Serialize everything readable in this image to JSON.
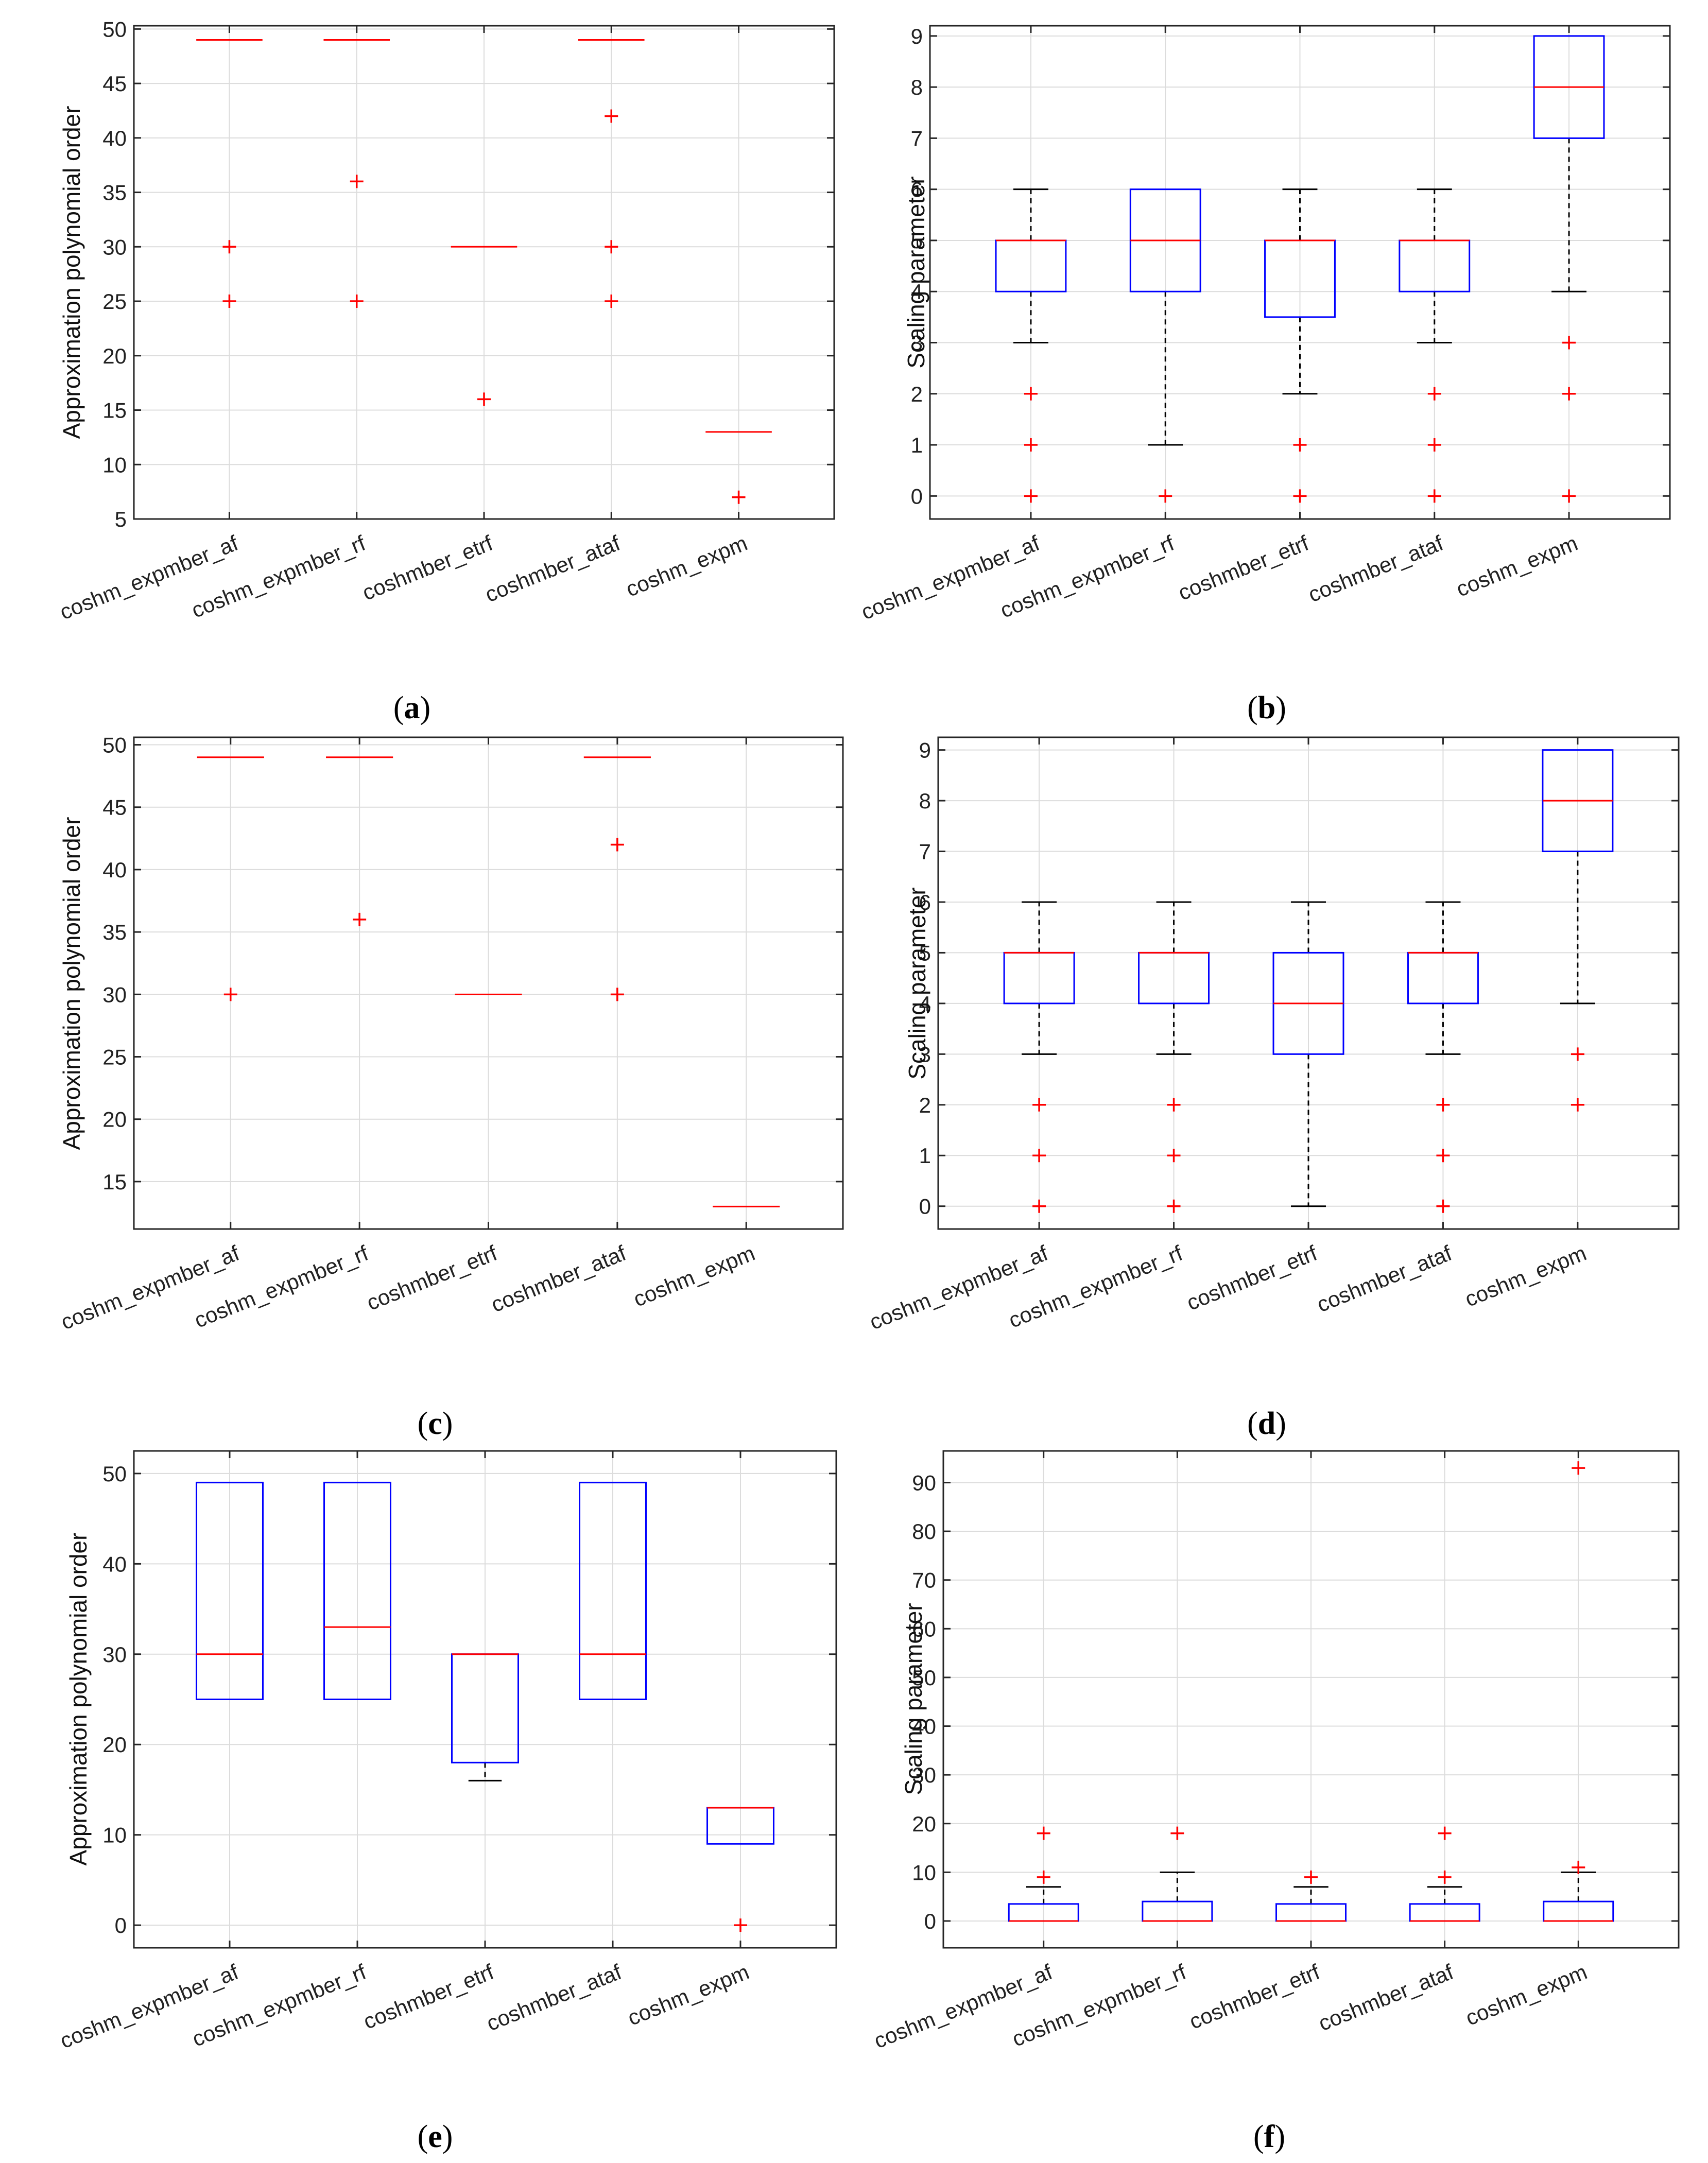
{
  "colors": {
    "box": "#0000ff",
    "median": "#ff0000",
    "outlier": "#ff0000",
    "whisker": "#000000",
    "grid": "#dcdcdc",
    "axis": "#262626"
  },
  "chart_data": [
    {
      "id": "a",
      "label_prefix": "(",
      "label_letter": "a",
      "label_suffix": ")",
      "type": "box",
      "ylabel": "Approximation polynomial order",
      "ylim": [
        5,
        50.3
      ],
      "yticks": [
        5,
        10,
        15,
        20,
        25,
        30,
        35,
        40,
        45,
        50
      ],
      "categories": [
        "coshm_expmber_af",
        "coshm_expmber_rf",
        "coshmber_etrf",
        "coshmber_ataf",
        "coshm_expm"
      ],
      "boxes": [
        {
          "q1": 49,
          "median": 49,
          "q3": 49,
          "wlo": 49,
          "whi": 49,
          "outliers": [
            30,
            25
          ]
        },
        {
          "q1": 49,
          "median": 49,
          "q3": 49,
          "wlo": 49,
          "whi": 49,
          "outliers": [
            36,
            25
          ]
        },
        {
          "q1": 30,
          "median": 30,
          "q3": 30,
          "wlo": 30,
          "whi": 30,
          "outliers": [
            16
          ]
        },
        {
          "q1": 49,
          "median": 49,
          "q3": 49,
          "wlo": 49,
          "whi": 49,
          "outliers": [
            42,
            30,
            25
          ]
        },
        {
          "q1": 13,
          "median": 13,
          "q3": 13,
          "wlo": 13,
          "whi": 13,
          "outliers": [
            7
          ]
        }
      ]
    },
    {
      "id": "b",
      "label_prefix": "(",
      "label_letter": "b",
      "label_suffix": ")",
      "type": "box",
      "ylabel": "Scaling parameter",
      "ylim": [
        -0.45,
        9.2
      ],
      "yticks": [
        0,
        1,
        2,
        3,
        4,
        5,
        6,
        7,
        8,
        9
      ],
      "categories": [
        "coshm_expmber_af",
        "coshm_expmber_rf",
        "coshmber_etrf",
        "coshmber_ataf",
        "coshm_expm"
      ],
      "boxes": [
        {
          "q1": 4,
          "median": 5,
          "q3": 5,
          "wlo": 3,
          "whi": 6,
          "outliers": [
            2,
            1,
            0
          ]
        },
        {
          "q1": 4,
          "median": 5,
          "q3": 6,
          "wlo": 1,
          "whi": 6,
          "outliers": [
            0
          ]
        },
        {
          "q1": 3.5,
          "median": 5,
          "q3": 5,
          "wlo": 2,
          "whi": 6,
          "outliers": [
            1,
            0
          ]
        },
        {
          "q1": 4,
          "median": 5,
          "q3": 5,
          "wlo": 3,
          "whi": 6,
          "outliers": [
            2,
            1,
            0
          ]
        },
        {
          "q1": 7,
          "median": 8,
          "q3": 9,
          "wlo": 4,
          "whi": 9,
          "outliers": [
            3,
            2,
            0
          ]
        }
      ]
    },
    {
      "id": "c",
      "label_prefix": "(",
      "label_letter": "c",
      "label_suffix": ")",
      "type": "box",
      "ylabel": "Approximation polynomial order",
      "ylim": [
        11.2,
        50.6
      ],
      "yticks": [
        15,
        20,
        25,
        30,
        35,
        40,
        45,
        50
      ],
      "categories": [
        "coshm_expmber_af",
        "coshm_expmber_rf",
        "coshmber_etrf",
        "coshmber_ataf",
        "coshm_expm"
      ],
      "boxes": [
        {
          "q1": 49,
          "median": 49,
          "q3": 49,
          "wlo": 49,
          "whi": 49,
          "outliers": [
            30
          ]
        },
        {
          "q1": 49,
          "median": 49,
          "q3": 49,
          "wlo": 49,
          "whi": 49,
          "outliers": [
            36
          ]
        },
        {
          "q1": 30,
          "median": 30,
          "q3": 30,
          "wlo": 30,
          "whi": 30,
          "outliers": []
        },
        {
          "q1": 49,
          "median": 49,
          "q3": 49,
          "wlo": 49,
          "whi": 49,
          "outliers": [
            42,
            30
          ]
        },
        {
          "q1": 13,
          "median": 13,
          "q3": 13,
          "wlo": 13,
          "whi": 13,
          "outliers": []
        }
      ]
    },
    {
      "id": "d",
      "label_prefix": "(",
      "label_letter": "d",
      "label_suffix": ")",
      "type": "box",
      "ylabel": "Scaling parameter",
      "ylim": [
        -0.45,
        9.25
      ],
      "yticks": [
        0,
        1,
        2,
        3,
        4,
        5,
        6,
        7,
        8,
        9
      ],
      "categories": [
        "coshm_expmber_af",
        "coshm_expmber_rf",
        "coshmber_etrf",
        "coshmber_ataf",
        "coshm_expm"
      ],
      "boxes": [
        {
          "q1": 4,
          "median": 5,
          "q3": 5,
          "wlo": 3,
          "whi": 6,
          "outliers": [
            2,
            1,
            0
          ]
        },
        {
          "q1": 4,
          "median": 5,
          "q3": 5,
          "wlo": 3,
          "whi": 6,
          "outliers": [
            2,
            1,
            0
          ]
        },
        {
          "q1": 3,
          "median": 4,
          "q3": 5,
          "wlo": 0,
          "whi": 6,
          "outliers": []
        },
        {
          "q1": 4,
          "median": 5,
          "q3": 5,
          "wlo": 3,
          "whi": 6,
          "outliers": [
            2,
            1,
            0
          ]
        },
        {
          "q1": 7,
          "median": 8,
          "q3": 9,
          "wlo": 4,
          "whi": 9,
          "outliers": [
            3,
            2
          ]
        }
      ]
    },
    {
      "id": "e",
      "label_prefix": "(",
      "label_letter": "e",
      "label_suffix": ")",
      "type": "box",
      "ylabel": "Approximation polynomial order",
      "ylim": [
        -2.5,
        52.5
      ],
      "yticks": [
        0,
        10,
        20,
        30,
        40,
        50
      ],
      "categories": [
        "coshm_expmber_af",
        "coshm_expmber_rf",
        "coshmber_etrf",
        "coshmber_ataf",
        "coshm_expm"
      ],
      "boxes": [
        {
          "q1": 25,
          "median": 30,
          "q3": 49,
          "wlo": 25,
          "whi": 49,
          "outliers": []
        },
        {
          "q1": 25,
          "median": 33,
          "q3": 49,
          "wlo": 25,
          "whi": 49,
          "outliers": []
        },
        {
          "q1": 18,
          "median": 30,
          "q3": 30,
          "wlo": 16,
          "whi": 30,
          "outliers": []
        },
        {
          "q1": 25,
          "median": 30,
          "q3": 49,
          "wlo": 25,
          "whi": 49,
          "outliers": []
        },
        {
          "q1": 9,
          "median": 13,
          "q3": 13,
          "wlo": 9,
          "whi": 13,
          "outliers": [
            0
          ]
        }
      ]
    },
    {
      "id": "f",
      "label_prefix": "(",
      "label_letter": "f",
      "label_suffix": ")",
      "type": "box",
      "ylabel": "Scaling parameter",
      "ylim": [
        -5.5,
        96.5
      ],
      "yticks": [
        0,
        10,
        20,
        30,
        40,
        50,
        60,
        70,
        80,
        90
      ],
      "categories": [
        "coshm_expmber_af",
        "coshm_expmber_rf",
        "coshmber_etrf",
        "coshmber_ataf",
        "coshm_expm"
      ],
      "boxes": [
        {
          "q1": 0,
          "median": 0,
          "q3": 3.5,
          "wlo": 0,
          "whi": 7,
          "outliers": [
            9,
            18
          ]
        },
        {
          "q1": 0,
          "median": 0,
          "q3": 4,
          "wlo": 0,
          "whi": 10,
          "outliers": [
            18
          ]
        },
        {
          "q1": 0,
          "median": 0,
          "q3": 3.5,
          "wlo": 0,
          "whi": 7,
          "outliers": [
            9
          ]
        },
        {
          "q1": 0,
          "median": 0,
          "q3": 3.5,
          "wlo": 0,
          "whi": 7,
          "outliers": [
            9,
            18
          ]
        },
        {
          "q1": 0,
          "median": 0,
          "q3": 4,
          "wlo": 0,
          "whi": 10,
          "outliers": [
            11,
            93
          ]
        }
      ]
    }
  ]
}
